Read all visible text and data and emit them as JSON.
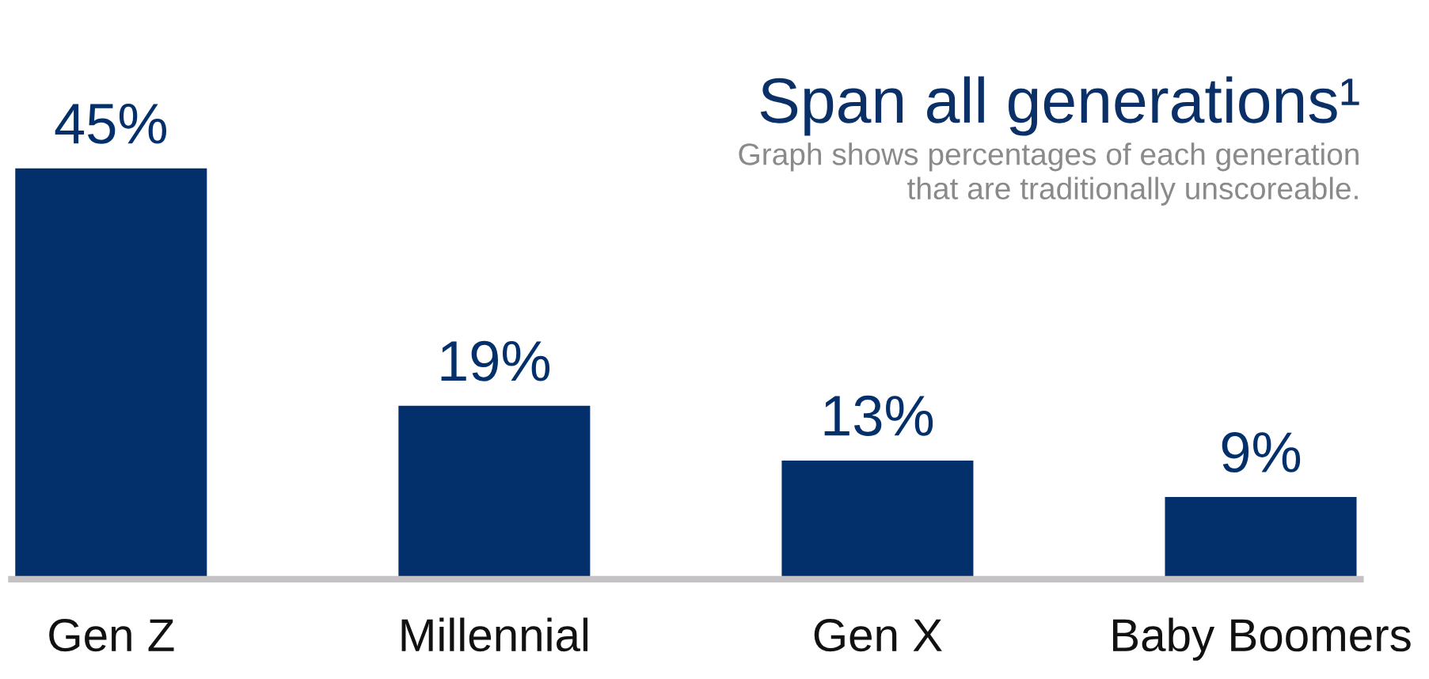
{
  "chart_data": {
    "type": "bar",
    "title": "Span all generations¹",
    "subtitle": "Graph shows percentages of each generation\nthat are traditionally unscoreable.",
    "categories": [
      "Gen Z",
      "Millennial",
      "Gen X",
      "Baby Boomers"
    ],
    "values": [
      45,
      19,
      13,
      9
    ],
    "value_labels": [
      "45%",
      "19%",
      "13%",
      "9%"
    ],
    "color": "#03306b"
  }
}
